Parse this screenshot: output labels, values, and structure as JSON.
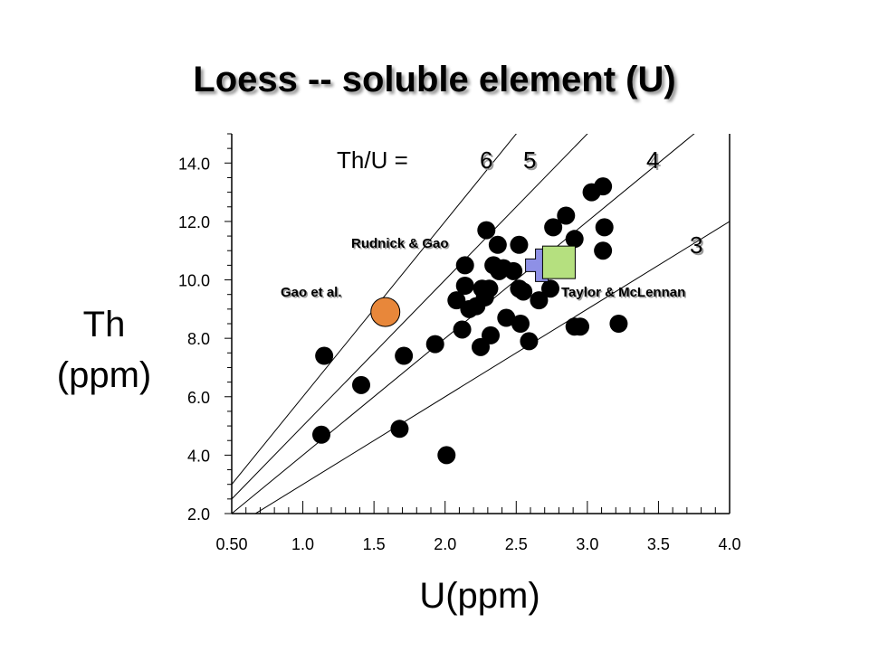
{
  "chart_data": {
    "type": "scatter",
    "title": "Loess -- soluble element (U)",
    "xlabel": "U(ppm)",
    "ylabel": [
      "Th",
      "(ppm)"
    ],
    "xlim": [
      0.5,
      4.0
    ],
    "ylim": [
      2.0,
      15.0
    ],
    "x_ticks": [
      0.5,
      1.0,
      1.5,
      2.0,
      2.5,
      3.0,
      3.5,
      4.0
    ],
    "x_tick_labels": [
      "0.50",
      "1.0",
      "1.5",
      "2.0",
      "2.5",
      "3.0",
      "3.5",
      "4.0"
    ],
    "y_ticks": [
      2.0,
      4.0,
      6.0,
      8.0,
      10.0,
      12.0,
      14.0
    ],
    "y_tick_labels": [
      "2.0",
      "4.0",
      "6.0",
      "8.0",
      "10.0",
      "12.0",
      "14.0"
    ],
    "ratio_prefix": "Th/U =",
    "ratio_lines": [
      {
        "ratio": 6,
        "label": "6"
      },
      {
        "ratio": 5,
        "label": "5"
      },
      {
        "ratio": 4,
        "label": "4"
      },
      {
        "ratio": 3,
        "label": "3"
      }
    ],
    "samples": [
      {
        "x": 1.13,
        "y": 4.7
      },
      {
        "x": 1.15,
        "y": 7.4
      },
      {
        "x": 1.41,
        "y": 6.4
      },
      {
        "x": 1.68,
        "y": 4.9
      },
      {
        "x": 1.71,
        "y": 7.4
      },
      {
        "x": 1.93,
        "y": 7.8
      },
      {
        "x": 2.01,
        "y": 4.0
      },
      {
        "x": 2.08,
        "y": 9.3
      },
      {
        "x": 2.12,
        "y": 8.3
      },
      {
        "x": 2.14,
        "y": 10.5
      },
      {
        "x": 2.14,
        "y": 9.8
      },
      {
        "x": 2.17,
        "y": 9.0
      },
      {
        "x": 2.22,
        "y": 9.1
      },
      {
        "x": 2.25,
        "y": 7.7
      },
      {
        "x": 2.26,
        "y": 9.7
      },
      {
        "x": 2.28,
        "y": 9.4
      },
      {
        "x": 2.29,
        "y": 11.7
      },
      {
        "x": 2.31,
        "y": 9.7
      },
      {
        "x": 2.32,
        "y": 8.1
      },
      {
        "x": 2.34,
        "y": 10.5
      },
      {
        "x": 2.37,
        "y": 11.2
      },
      {
        "x": 2.38,
        "y": 10.3
      },
      {
        "x": 2.41,
        "y": 10.4
      },
      {
        "x": 2.43,
        "y": 8.7
      },
      {
        "x": 2.48,
        "y": 10.3
      },
      {
        "x": 2.52,
        "y": 11.2
      },
      {
        "x": 2.52,
        "y": 9.7
      },
      {
        "x": 2.53,
        "y": 8.5
      },
      {
        "x": 2.55,
        "y": 9.6
      },
      {
        "x": 2.59,
        "y": 7.9
      },
      {
        "x": 2.66,
        "y": 9.3
      },
      {
        "x": 2.74,
        "y": 9.7
      },
      {
        "x": 2.76,
        "y": 11.8
      },
      {
        "x": 2.85,
        "y": 12.2
      },
      {
        "x": 2.91,
        "y": 11.4
      },
      {
        "x": 2.91,
        "y": 8.4
      },
      {
        "x": 2.95,
        "y": 8.4
      },
      {
        "x": 3.03,
        "y": 13.0
      },
      {
        "x": 3.11,
        "y": 13.2
      },
      {
        "x": 3.12,
        "y": 11.8
      },
      {
        "x": 3.11,
        "y": 11.0
      },
      {
        "x": 3.22,
        "y": 8.5
      }
    ],
    "references": [
      {
        "name": "Gao et al.",
        "x": 1.58,
        "y": 8.9,
        "shape": "circle",
        "color": "#e8873a"
      },
      {
        "name": "Rudnick & Gao",
        "x": 2.68,
        "y": 10.5,
        "shape": "cross",
        "color": "#8e90e6"
      },
      {
        "name": "Taylor & McLennan",
        "x": 2.8,
        "y": 10.6,
        "shape": "square",
        "color": "#b5e07f"
      }
    ],
    "colors": {
      "sample": "#000000",
      "line": "#000000"
    },
    "grid": false
  }
}
